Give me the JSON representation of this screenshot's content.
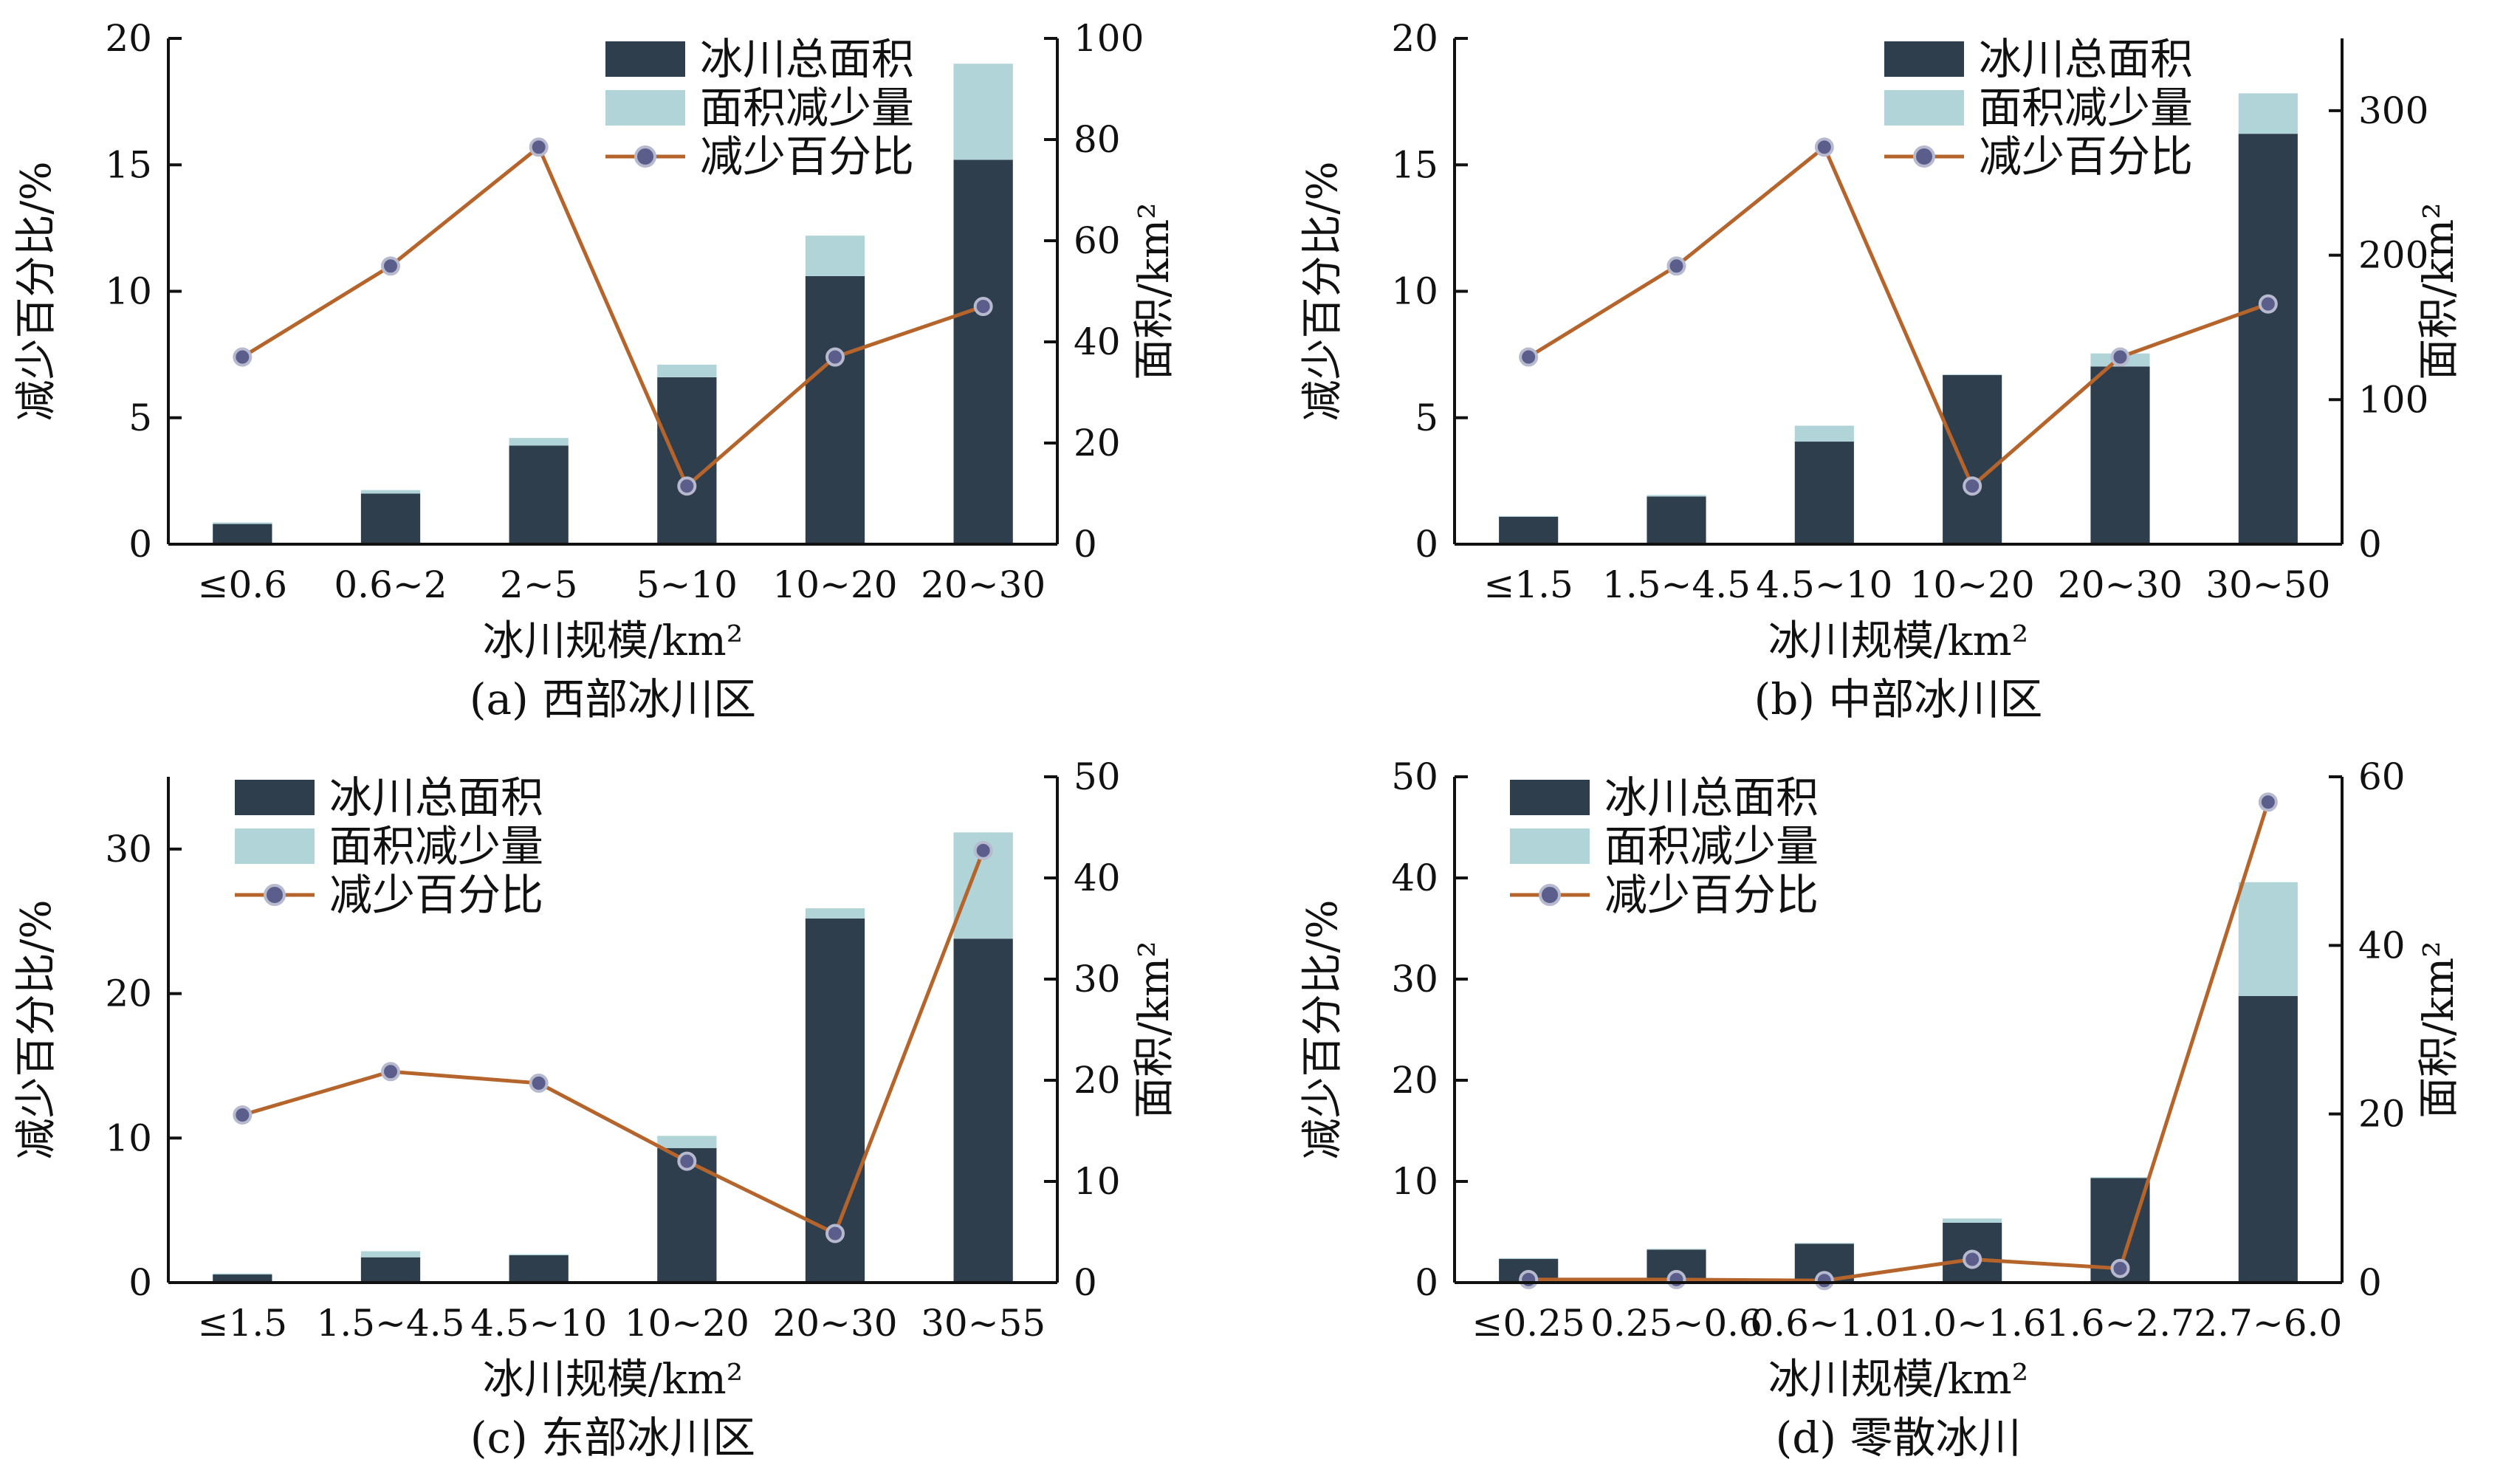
{
  "chart_data": [
    {
      "type": "bar",
      "caption": "(a) 西部冰川区",
      "xlabel": "冰川规模/km²",
      "ylabel_left": "减少百分比/%",
      "ylabel_right": "面积/km²",
      "left_ylim": [
        0,
        20
      ],
      "left_ticks": [
        0,
        5,
        10,
        15,
        20
      ],
      "right_ylim": [
        0,
        100
      ],
      "right_ticks": [
        0,
        20,
        40,
        60,
        80,
        100
      ],
      "categories": [
        "≤0.6",
        "0.6~2",
        "2~5",
        "5~10",
        "10~20",
        "20~30"
      ],
      "legend": {
        "position": "top-right",
        "entries": [
          "冰川总面积",
          "面积减少量",
          "减少百分比"
        ]
      },
      "series": [
        {
          "name": "冰川总面积",
          "axis": "right",
          "values": [
            4,
            10,
            19.5,
            33,
            53,
            76
          ]
        },
        {
          "name": "面积减少量",
          "axis": "right",
          "values": [
            0.3,
            0.7,
            1.5,
            2.5,
            8,
            19
          ]
        },
        {
          "name": "减少百分比",
          "axis": "left",
          "kind": "line",
          "values": [
            7.4,
            11.0,
            15.7,
            2.3,
            7.4,
            9.4
          ]
        }
      ]
    },
    {
      "type": "bar",
      "caption": "(b) 中部冰川区",
      "xlabel": "冰川规模/km²",
      "ylabel_left": "减少百分比/%",
      "ylabel_right": "面积/km²",
      "left_ylim": [
        0,
        20
      ],
      "left_ticks": [
        0,
        5,
        10,
        15,
        20
      ],
      "right_ylim": [
        0,
        350
      ],
      "right_ticks": [
        0,
        100,
        200,
        300
      ],
      "categories": [
        "≤1.5",
        "1.5~4.5",
        "4.5~10",
        "10~20",
        "20~30",
        "30~50"
      ],
      "legend": {
        "position": "top-right",
        "entries": [
          "冰川总面积",
          "面积减少量",
          "减少百分比"
        ]
      },
      "series": [
        {
          "name": "冰川总面积",
          "axis": "right",
          "values": [
            19,
            33,
            71,
            117,
            123,
            284
          ]
        },
        {
          "name": "面积减少量",
          "axis": "right",
          "values": [
            0.5,
            1,
            11,
            0.5,
            9,
            28
          ]
        },
        {
          "name": "减少百分比",
          "axis": "left",
          "kind": "line",
          "values": [
            7.4,
            11.0,
            15.7,
            2.3,
            7.4,
            9.5
          ]
        }
      ]
    },
    {
      "type": "bar",
      "caption": "(c) 东部冰川区",
      "xlabel": "冰川规模/km²",
      "ylabel_left": "减少百分比/%",
      "ylabel_right": "面积/km²",
      "left_ylim": [
        0,
        35
      ],
      "left_ticks": [
        0,
        10,
        20,
        30
      ],
      "right_ylim": [
        0,
        50
      ],
      "right_ticks": [
        0,
        10,
        20,
        30,
        40,
        50
      ],
      "categories": [
        "≤1.5",
        "1.5~4.5",
        "4.5~10",
        "10~20",
        "20~30",
        "30~55"
      ],
      "legend": {
        "position": "top-left",
        "entries": [
          "冰川总面积",
          "面积减少量",
          "减少百分比"
        ]
      },
      "series": [
        {
          "name": "冰川总面积",
          "axis": "right",
          "values": [
            0.8,
            2.5,
            2.7,
            13.3,
            36,
            34
          ]
        },
        {
          "name": "面积减少量",
          "axis": "right",
          "values": [
            0.1,
            0.6,
            0.1,
            1.2,
            1.0,
            10.5
          ]
        },
        {
          "name": "减少百分比",
          "axis": "left",
          "kind": "line",
          "values": [
            11.6,
            14.6,
            13.8,
            8.4,
            3.4,
            29.9
          ]
        }
      ]
    },
    {
      "type": "bar",
      "caption": "(d) 零散冰川",
      "xlabel": "冰川规模/km²",
      "ylabel_left": "减少百分比/%",
      "ylabel_right": "面积/km²",
      "left_ylim": [
        0,
        50
      ],
      "left_ticks": [
        0,
        10,
        20,
        30,
        40,
        50
      ],
      "right_ylim": [
        0,
        60
      ],
      "right_ticks": [
        0,
        20,
        40,
        60
      ],
      "categories": [
        "≤0.25",
        "0.25~0.6",
        "0.6~1.0",
        "1.0~1.6",
        "1.6~2.7",
        "2.7~6.0"
      ],
      "legend": {
        "position": "top-left",
        "entries": [
          "冰川总面积",
          "面积减少量",
          "减少百分比"
        ]
      },
      "series": [
        {
          "name": "冰川总面积",
          "axis": "right",
          "values": [
            2.8,
            3.9,
            4.6,
            7.1,
            12.4,
            34
          ]
        },
        {
          "name": "面积减少量",
          "axis": "right",
          "values": [
            0.1,
            0.1,
            0.1,
            0.5,
            0.1,
            13.5
          ]
        },
        {
          "name": "减少百分比",
          "axis": "left",
          "kind": "line",
          "values": [
            0.3,
            0.3,
            0.2,
            2.3,
            1.4,
            47.5
          ]
        }
      ]
    }
  ],
  "colors": {
    "total_area": "#2f3e4c",
    "area_decrease": "#b1d4d8",
    "percent_line": "#b5652b",
    "marker_fill": "#5b5e8a",
    "marker_stroke": "#b7b9cf"
  }
}
